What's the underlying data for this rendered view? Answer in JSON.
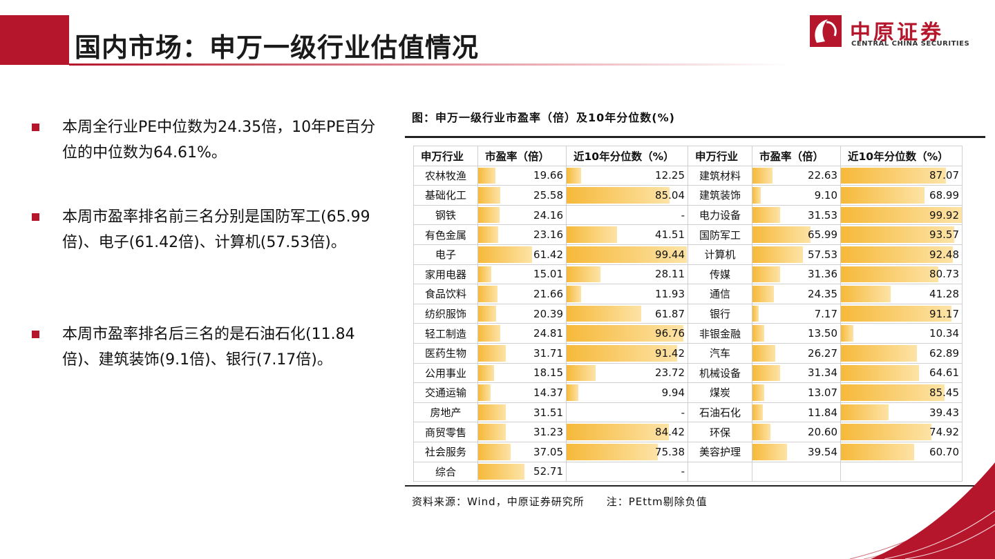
{
  "header": {
    "title": "国内市场：申万一级行业估值情况",
    "logo_cn": "中原证券",
    "logo_en": "CENTRAL CHINA SECURITIES"
  },
  "bullets": [
    "本周全行业PE中位数为24.35倍，10年PE百分位的中位数为64.61%。",
    "本周市盈率排名前三名分别是国防军工(65.99倍)、电子(61.42倍)、计算机(57.53倍)。",
    "本周市盈率排名后三名的是石油石化(11.84倍)、建筑装饰(9.1倍)、银行(7.17倍)。"
  ],
  "figure": {
    "caption": "图：申万一级行业市盈率（倍）及10年分位数(%)",
    "source": "资料来源：Wind，中原证券研究所　　注：PEttm剔除负值",
    "headers": [
      "申万行业",
      "市盈率（倍）",
      "近10年分位数（%）",
      "申万行业",
      "市盈率（倍）",
      "近10年分位数（%）"
    ]
  },
  "chart_data": {
    "type": "table",
    "title": "图：申万一级行业市盈率（倍）及10年分位数(%)",
    "columns": [
      "申万行业",
      "市盈率（倍）",
      "近10年分位数（%）"
    ],
    "left": [
      {
        "name": "农林牧渔",
        "pe": "19.66",
        "pct": "12.25"
      },
      {
        "name": "基础化工",
        "pe": "25.58",
        "pct": "85.04"
      },
      {
        "name": "钢铁",
        "pe": "24.16",
        "pct": "-"
      },
      {
        "name": "有色金属",
        "pe": "23.16",
        "pct": "41.51"
      },
      {
        "name": "电子",
        "pe": "61.42",
        "pct": "99.44"
      },
      {
        "name": "家用电器",
        "pe": "15.01",
        "pct": "28.11"
      },
      {
        "name": "食品饮料",
        "pe": "21.66",
        "pct": "11.93"
      },
      {
        "name": "纺织服饰",
        "pe": "20.39",
        "pct": "61.87"
      },
      {
        "name": "轻工制造",
        "pe": "24.81",
        "pct": "96.76"
      },
      {
        "name": "医药生物",
        "pe": "31.71",
        "pct": "91.42"
      },
      {
        "name": "公用事业",
        "pe": "18.15",
        "pct": "23.72"
      },
      {
        "name": "交通运输",
        "pe": "14.37",
        "pct": "9.94"
      },
      {
        "name": "房地产",
        "pe": "31.51",
        "pct": "-"
      },
      {
        "name": "商贸零售",
        "pe": "31.23",
        "pct": "84.42"
      },
      {
        "name": "社会服务",
        "pe": "37.05",
        "pct": "75.38"
      },
      {
        "name": "综合",
        "pe": "52.71",
        "pct": "-"
      }
    ],
    "right": [
      {
        "name": "建筑材料",
        "pe": "22.63",
        "pct": "87.07"
      },
      {
        "name": "建筑装饰",
        "pe": "9.10",
        "pct": "68.99"
      },
      {
        "name": "电力设备",
        "pe": "31.53",
        "pct": "99.92"
      },
      {
        "name": "国防军工",
        "pe": "65.99",
        "pct": "93.57"
      },
      {
        "name": "计算机",
        "pe": "57.53",
        "pct": "92.48"
      },
      {
        "name": "传媒",
        "pe": "31.36",
        "pct": "80.73"
      },
      {
        "name": "通信",
        "pe": "24.35",
        "pct": "41.28"
      },
      {
        "name": "银行",
        "pe": "7.17",
        "pct": "91.17"
      },
      {
        "name": "非银金融",
        "pe": "13.50",
        "pct": "10.34"
      },
      {
        "name": "汽车",
        "pe": "26.27",
        "pct": "62.89"
      },
      {
        "name": "机械设备",
        "pe": "31.34",
        "pct": "64.61"
      },
      {
        "name": "煤炭",
        "pe": "13.07",
        "pct": "85.45"
      },
      {
        "name": "石油石化",
        "pe": "11.84",
        "pct": "39.43"
      },
      {
        "name": "环保",
        "pe": "20.60",
        "pct": "74.92"
      },
      {
        "name": "美容护理",
        "pe": "39.54",
        "pct": "60.70"
      }
    ],
    "pe_bar_max": 100,
    "pct_bar_max": 100
  },
  "colors": {
    "accent": "#b5162b",
    "bar_start": "#f6b93a",
    "bar_end": "#fde3a6"
  }
}
